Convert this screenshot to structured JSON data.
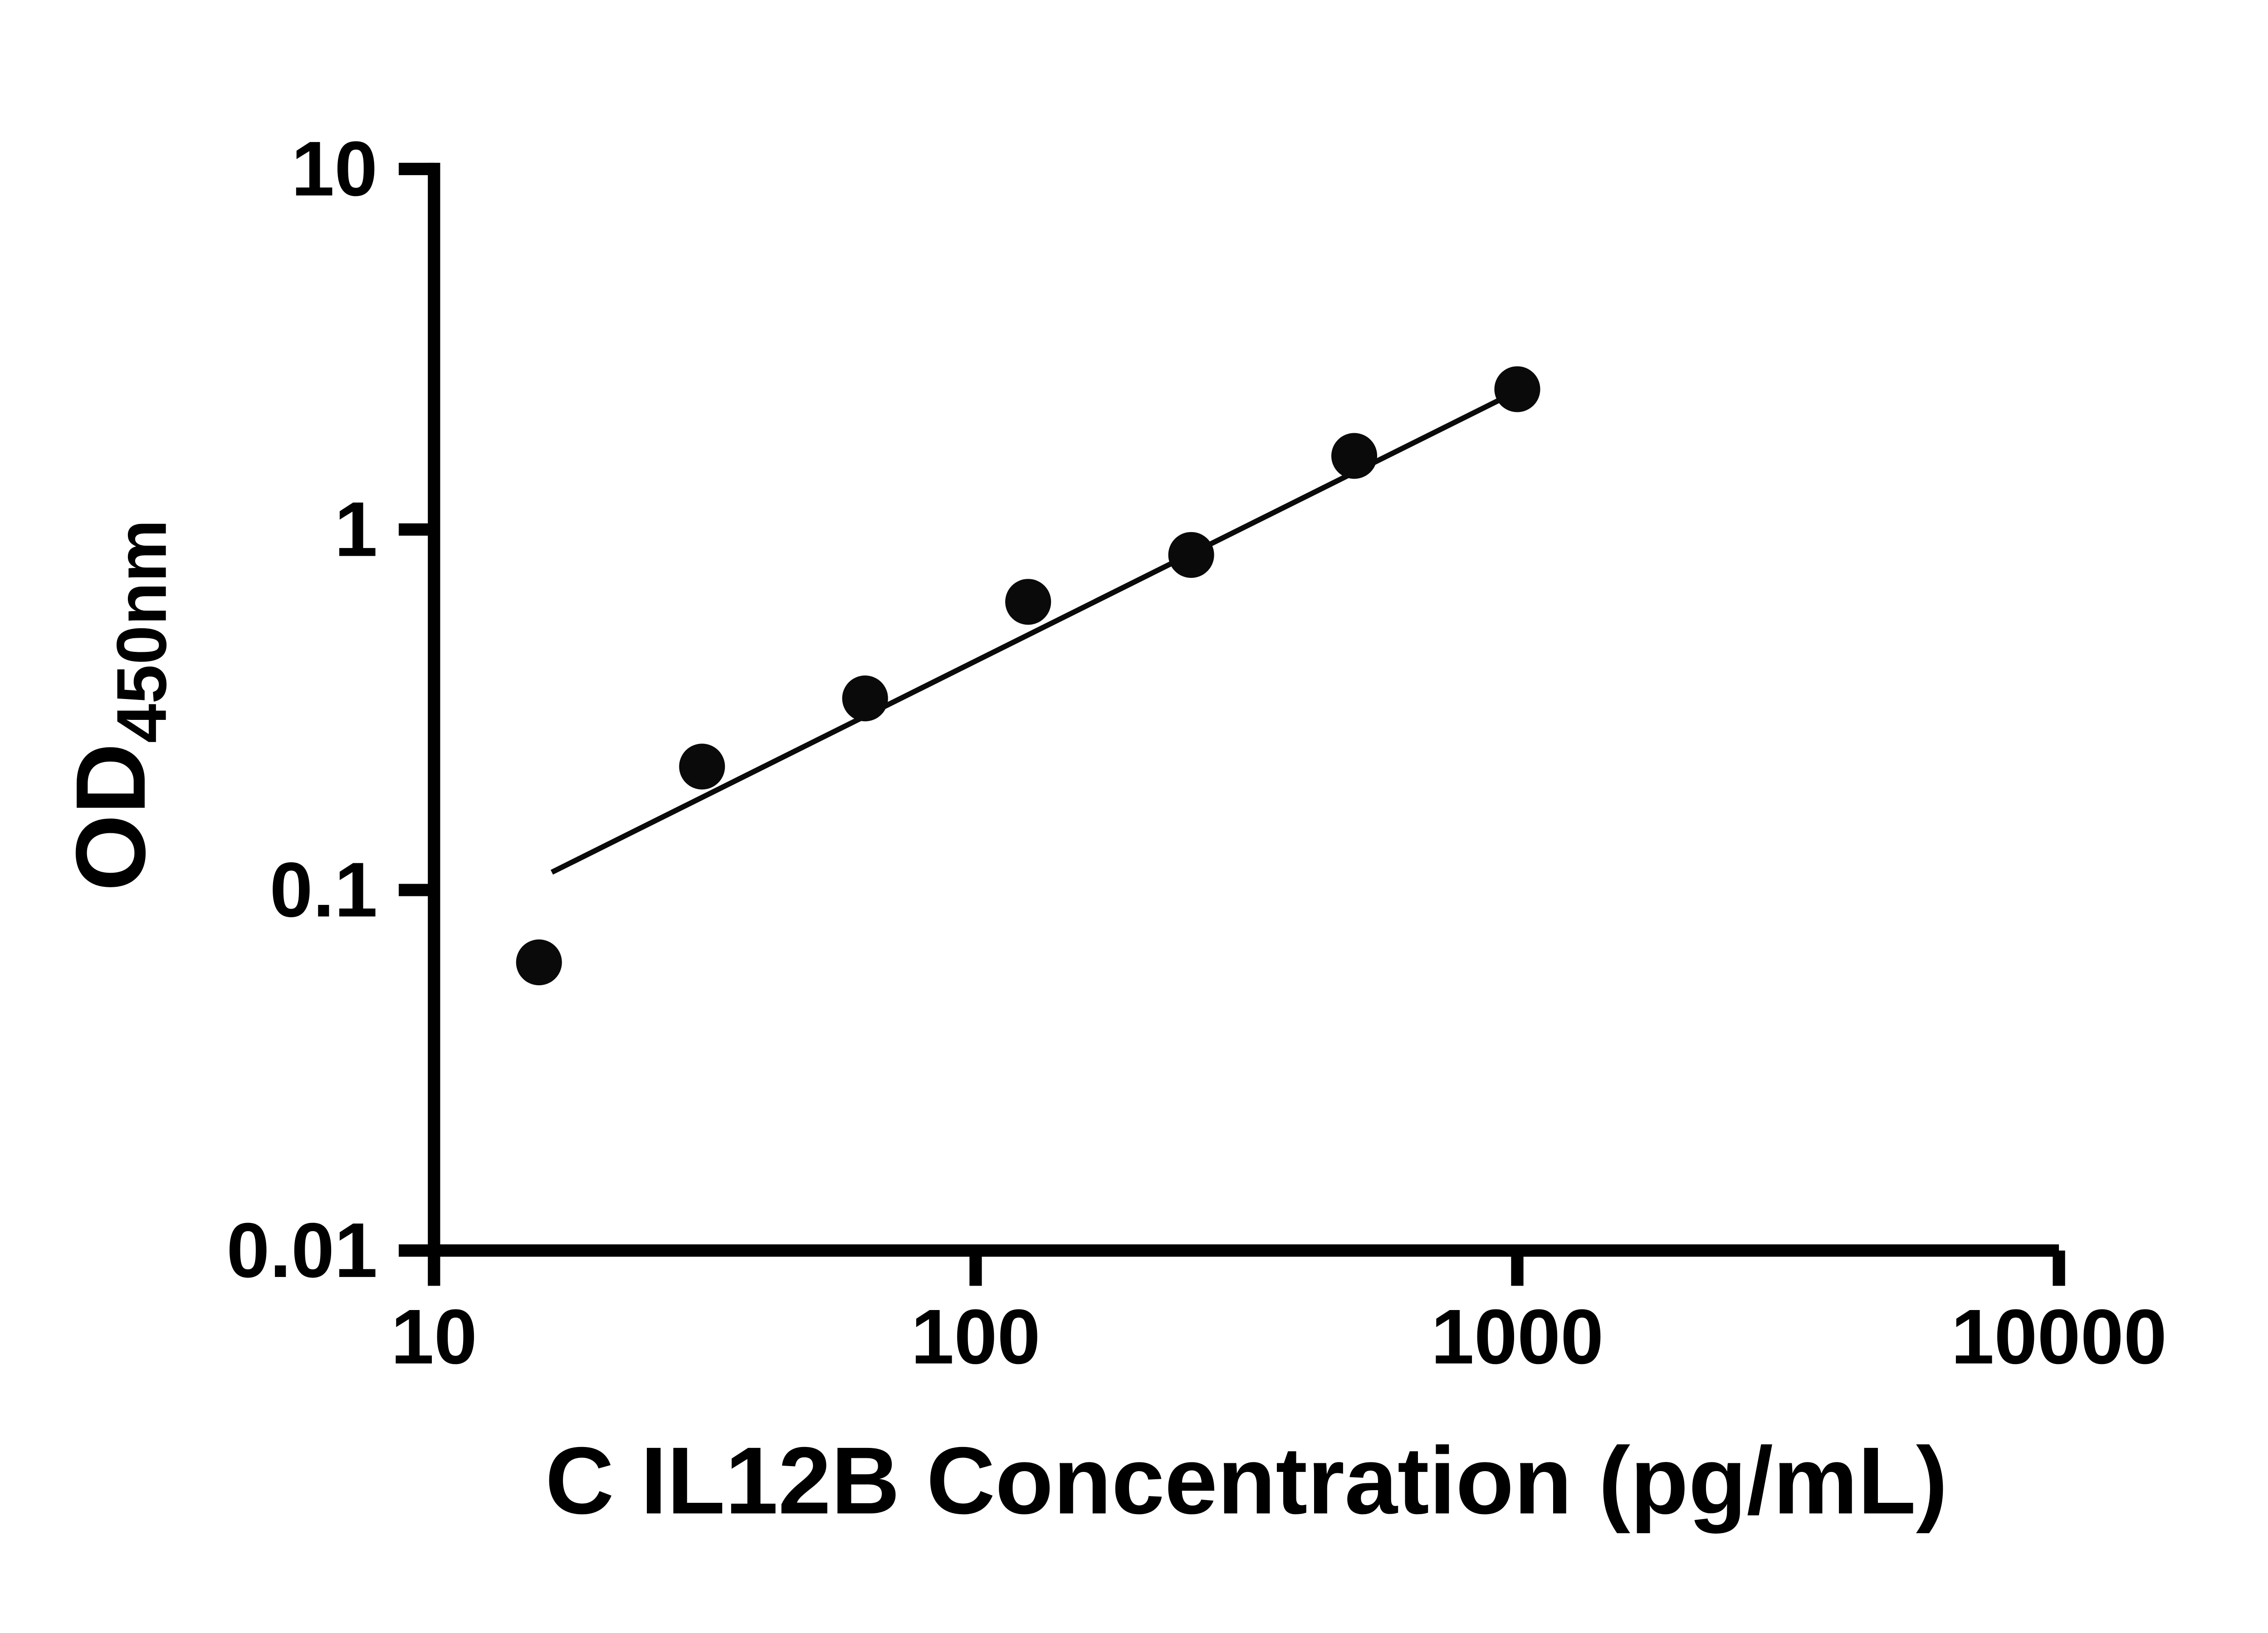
{
  "chart_data": {
    "type": "scatter",
    "title": "",
    "xlabel": "C IL12B Concentration (pg/mL)",
    "ylabel_main": "OD",
    "ylabel_sub": "450nm",
    "x_scale": "log10",
    "y_scale": "log10",
    "xlim": [
      10,
      10000
    ],
    "ylim": [
      0.01,
      10
    ],
    "x_ticks": [
      10,
      100,
      1000,
      10000
    ],
    "x_tick_labels": [
      "10",
      "100",
      "1000",
      "10000"
    ],
    "y_ticks": [
      0.01,
      0.1,
      1,
      10
    ],
    "y_tick_labels": [
      "0.01",
      "0.1",
      "1",
      "10"
    ],
    "grid": false,
    "legend": false,
    "points": [
      {
        "x": 15.625,
        "y": 0.063
      },
      {
        "x": 31.25,
        "y": 0.22
      },
      {
        "x": 62.5,
        "y": 0.34
      },
      {
        "x": 125,
        "y": 0.63
      },
      {
        "x": 250,
        "y": 0.85
      },
      {
        "x": 500,
        "y": 1.6
      },
      {
        "x": 1000,
        "y": 2.45
      }
    ],
    "trend_line": {
      "x1": 16.5,
      "y1": 0.112,
      "x2": 1000,
      "y2": 2.42
    },
    "marker_radius": 13,
    "colors": {
      "points": "#0a0a0a",
      "line": "#0a0a0a",
      "axis": "#000000",
      "background": "#ffffff"
    }
  }
}
